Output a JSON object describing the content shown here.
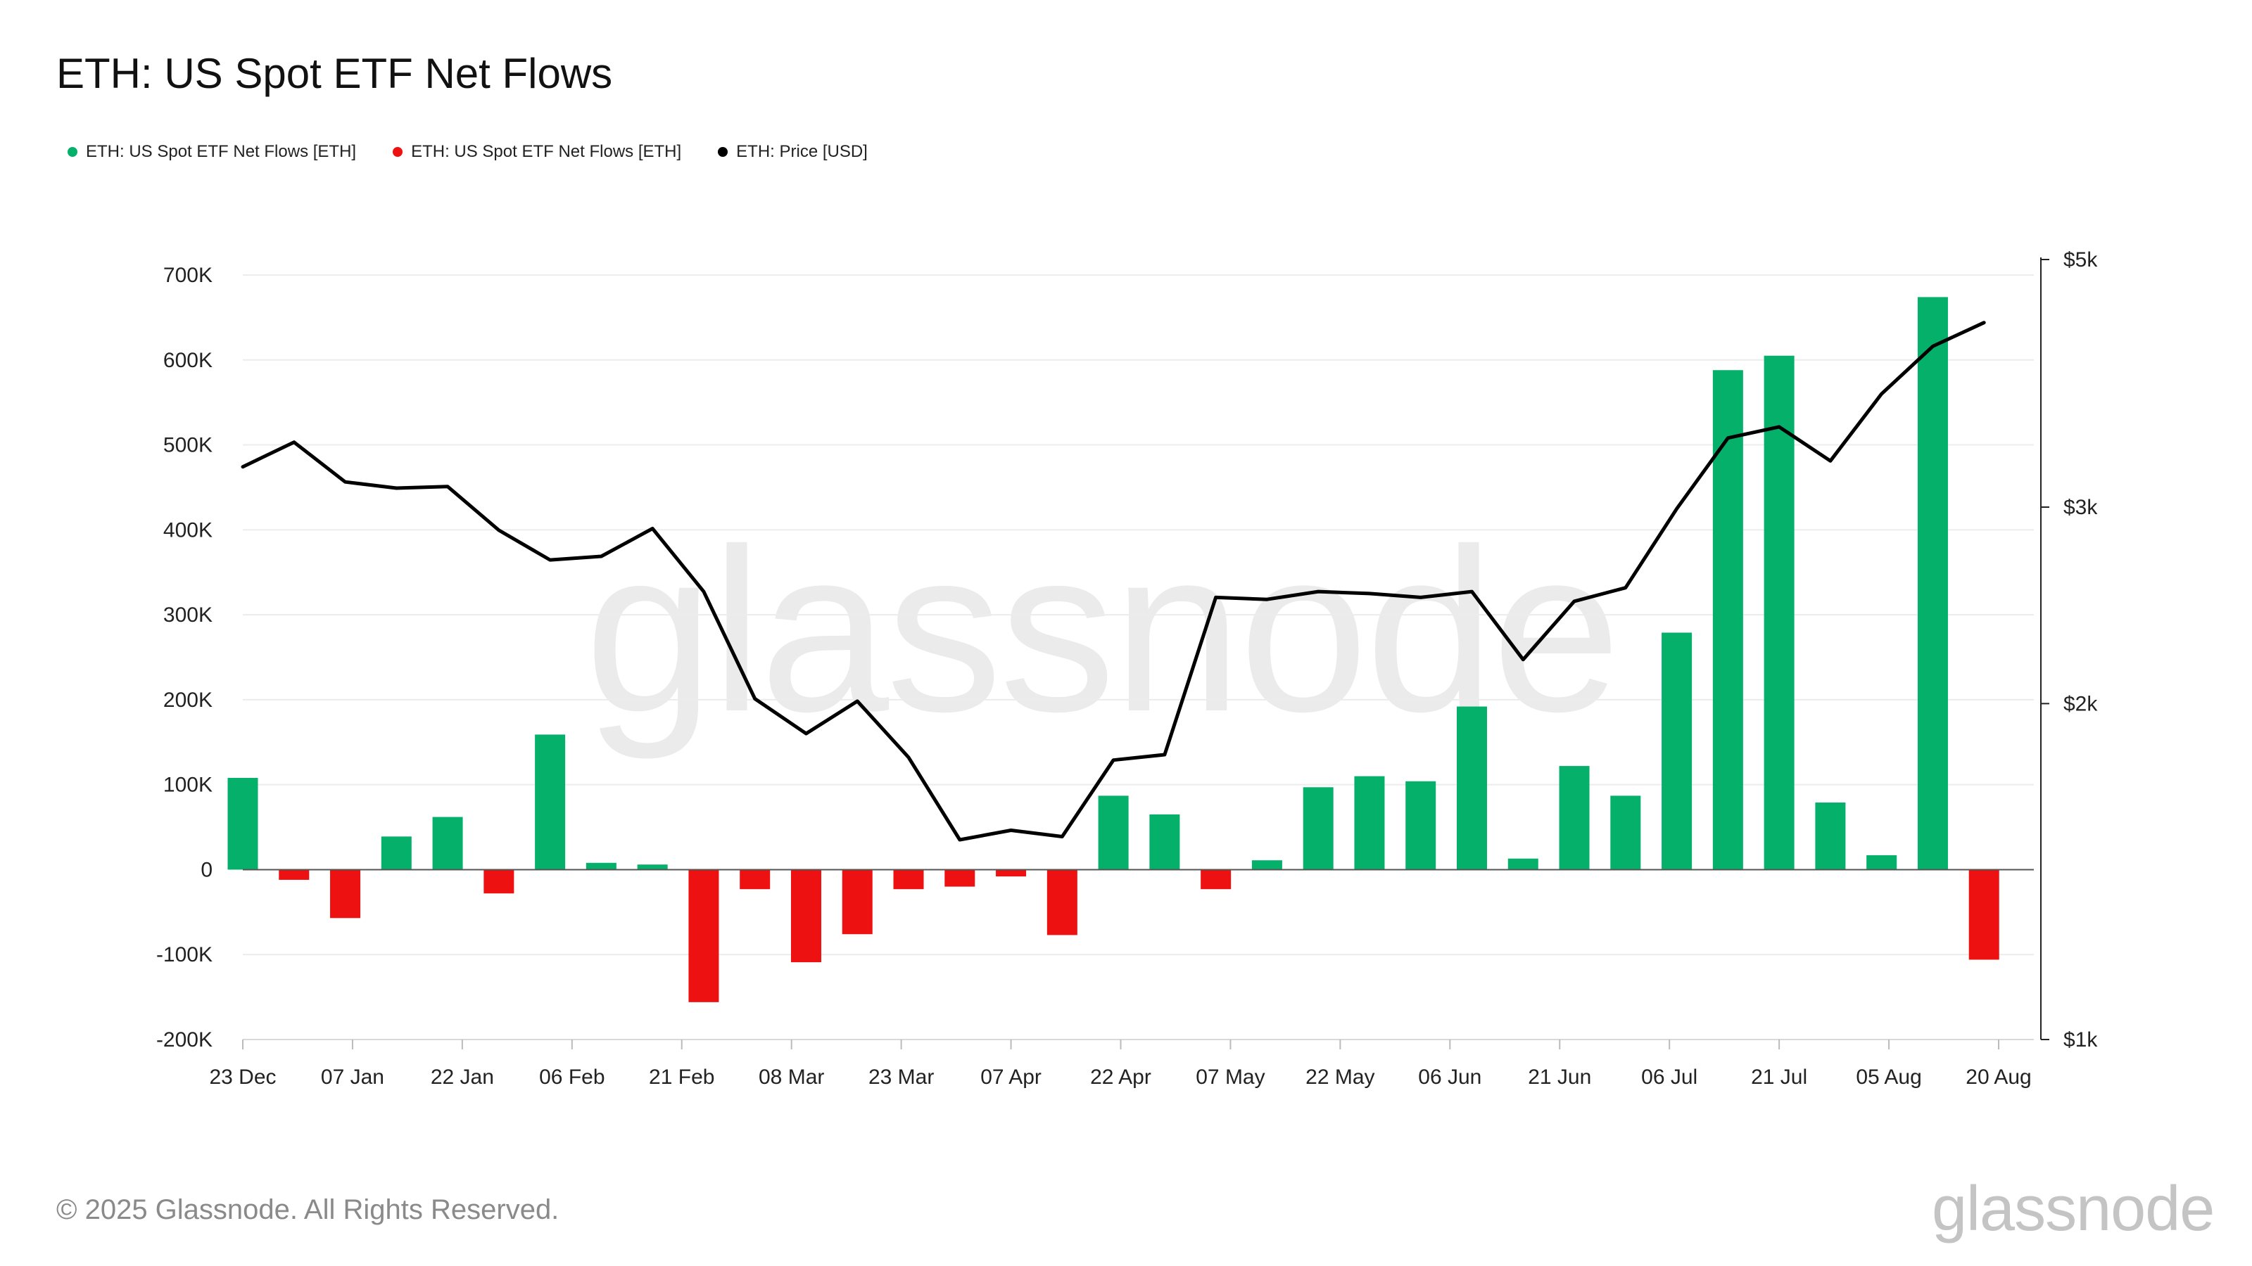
{
  "title": "ETH: US Spot ETF Net Flows",
  "legend": [
    {
      "label": "ETH: US Spot ETF Net Flows [ETH]",
      "color": "#05b16a"
    },
    {
      "label": "ETH: US Spot ETF Net Flows [ETH]",
      "color": "#ee1111"
    },
    {
      "label": "ETH: Price [USD]",
      "color": "#000000"
    }
  ],
  "footer": "© 2025 Glassnode. All Rights Reserved.",
  "watermark": "glassnode",
  "logo": "glassnode",
  "colors": {
    "positive": "#05b16a",
    "negative": "#ee1111",
    "price": "#000000",
    "grid": "#ececec",
    "watermark": "#ebebeb"
  },
  "chart_data": {
    "type": "bar",
    "title": "ETH: US Spot ETF Net Flows",
    "x": [
      "2024-12-23",
      "2024-12-30",
      "2025-01-06",
      "2025-01-13",
      "2025-01-20",
      "2025-01-27",
      "2025-02-03",
      "2025-02-10",
      "2025-02-17",
      "2025-02-24",
      "2025-03-03",
      "2025-03-10",
      "2025-03-17",
      "2025-03-24",
      "2025-03-31",
      "2025-04-07",
      "2025-04-14",
      "2025-04-21",
      "2025-04-28",
      "2025-05-05",
      "2025-05-12",
      "2025-05-19",
      "2025-05-26",
      "2025-06-02",
      "2025-06-09",
      "2025-06-16",
      "2025-06-23",
      "2025-06-30",
      "2025-07-07",
      "2025-07-14",
      "2025-07-21",
      "2025-07-28",
      "2025-08-04",
      "2025-08-11",
      "2025-08-18"
    ],
    "series": [
      {
        "name": "ETH: US Spot ETF Net Flows [ETH]",
        "axis": "left",
        "values": [
          108000,
          -12000,
          -57000,
          39000,
          62000,
          -28000,
          159000,
          8000,
          6000,
          -156000,
          -23000,
          -109000,
          -76000,
          -23000,
          -20000,
          -8000,
          -77000,
          87000,
          65000,
          -23000,
          11000,
          97000,
          110000,
          104000,
          192000,
          13000,
          122000,
          87000,
          279000,
          588000,
          605000,
          79000,
          17000,
          674000,
          -106000
        ]
      },
      {
        "name": "ETH: Price [USD]",
        "axis": "right",
        "values": [
          3260,
          3430,
          3160,
          3120,
          3130,
          2860,
          2690,
          2710,
          2870,
          2520,
          2020,
          1880,
          2010,
          1790,
          1510,
          1540,
          1520,
          1780,
          1800,
          2490,
          2480,
          2520,
          2510,
          2490,
          2520,
          2190,
          2470,
          2540,
          2990,
          3460,
          3540,
          3300,
          3790,
          4180,
          4390
        ]
      }
    ],
    "y_left": {
      "ticks": [
        "700K",
        "600K",
        "500K",
        "400K",
        "300K",
        "200K",
        "100K",
        "0",
        "-100K",
        "-200K"
      ],
      "range": [
        -200000,
        700000
      ]
    },
    "y_right": {
      "ticks": [
        "$5k",
        "$3k",
        "$2k",
        "$1k"
      ],
      "range": [
        1000,
        5000
      ],
      "scale": "log"
    },
    "x_ticks": [
      {
        "date": "2024-12-23",
        "label": "23 Dec"
      },
      {
        "date": "2025-01-07",
        "label": "07 Jan"
      },
      {
        "date": "2025-01-22",
        "label": "22 Jan"
      },
      {
        "date": "2025-02-06",
        "label": "06 Feb"
      },
      {
        "date": "2025-02-21",
        "label": "21 Feb"
      },
      {
        "date": "2025-03-08",
        "label": "08 Mar"
      },
      {
        "date": "2025-03-23",
        "label": "23 Mar"
      },
      {
        "date": "2025-04-07",
        "label": "07 Apr"
      },
      {
        "date": "2025-04-22",
        "label": "22 Apr"
      },
      {
        "date": "2025-05-07",
        "label": "07 May"
      },
      {
        "date": "2025-05-22",
        "label": "22 May"
      },
      {
        "date": "2025-06-06",
        "label": "06 Jun"
      },
      {
        "date": "2025-06-21",
        "label": "21 Jun"
      },
      {
        "date": "2025-07-06",
        "label": "06 Jul"
      },
      {
        "date": "2025-07-21",
        "label": "21 Jul"
      },
      {
        "date": "2025-08-05",
        "label": "05 Aug"
      },
      {
        "date": "2025-08-20",
        "label": "20 Aug"
      }
    ],
    "grid": true,
    "legend_position": "top-left"
  }
}
